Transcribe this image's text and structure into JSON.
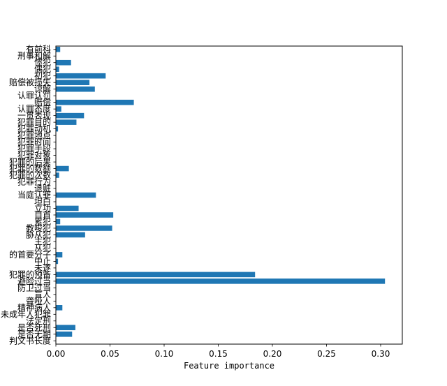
{
  "chart_data": {
    "type": "bar",
    "orientation": "horizontal",
    "title": "",
    "xlabel": "Feature importance",
    "ylabel": "",
    "xlim": [
      0,
      0.32
    ],
    "xticks": [
      "0.00",
      "0.05",
      "0.10",
      "0.15",
      "0.20",
      "0.25",
      "0.30"
    ],
    "xtick_values": [
      0,
      0.05,
      0.1,
      0.15,
      0.2,
      0.25,
      0.3
    ],
    "grid": false,
    "bar_color": "#1f77b4",
    "categories": [
      "判文书长度",
      "是否无期",
      "是否死刑",
      "法定刑",
      "未成年人犯罪",
      "精神病人",
      "聋哑人",
      "盲人",
      "防卫过当",
      "避险过当",
      "犯罪的预备",
      "未遂",
      "中止",
      "的首要分子",
      "从犯",
      "主犯",
      "胁从犯",
      "教唆犯",
      "累犯",
      "自首",
      "立功",
      "坦白",
      "当庭认罪",
      "退赃",
      "犯罪行为",
      "犯罪的次数",
      "犯罪的数额",
      "犯罪的后果",
      "犯罪对象",
      "犯罪手段",
      "犯罪时间",
      "犯罪地点",
      "犯罪动机",
      "犯罪目的",
      "一贯表现",
      "认罪态度",
      "赔偿",
      "认罪认罚",
      "谅解",
      "赔偿被损失",
      "初犯",
      "偶犯",
      "惯犯",
      "刑事和解",
      "有前科"
    ],
    "values": [
      0.0,
      0.015,
      0.018,
      0.0,
      0.0,
      0.006,
      0.0,
      0.0,
      0.0,
      0.304,
      0.184,
      0.0,
      0.002,
      0.006,
      0.0,
      0.0,
      0.027,
      0.052,
      0.004,
      0.053,
      0.021,
      0.0,
      0.037,
      0.0,
      0.0,
      0.003,
      0.012,
      0.0,
      0.0,
      0.0,
      0.0,
      0.0,
      0.002,
      0.019,
      0.026,
      0.005,
      0.072,
      0.0,
      0.036,
      0.031,
      0.046,
      0.003,
      0.014,
      0.0,
      0.004
    ]
  }
}
